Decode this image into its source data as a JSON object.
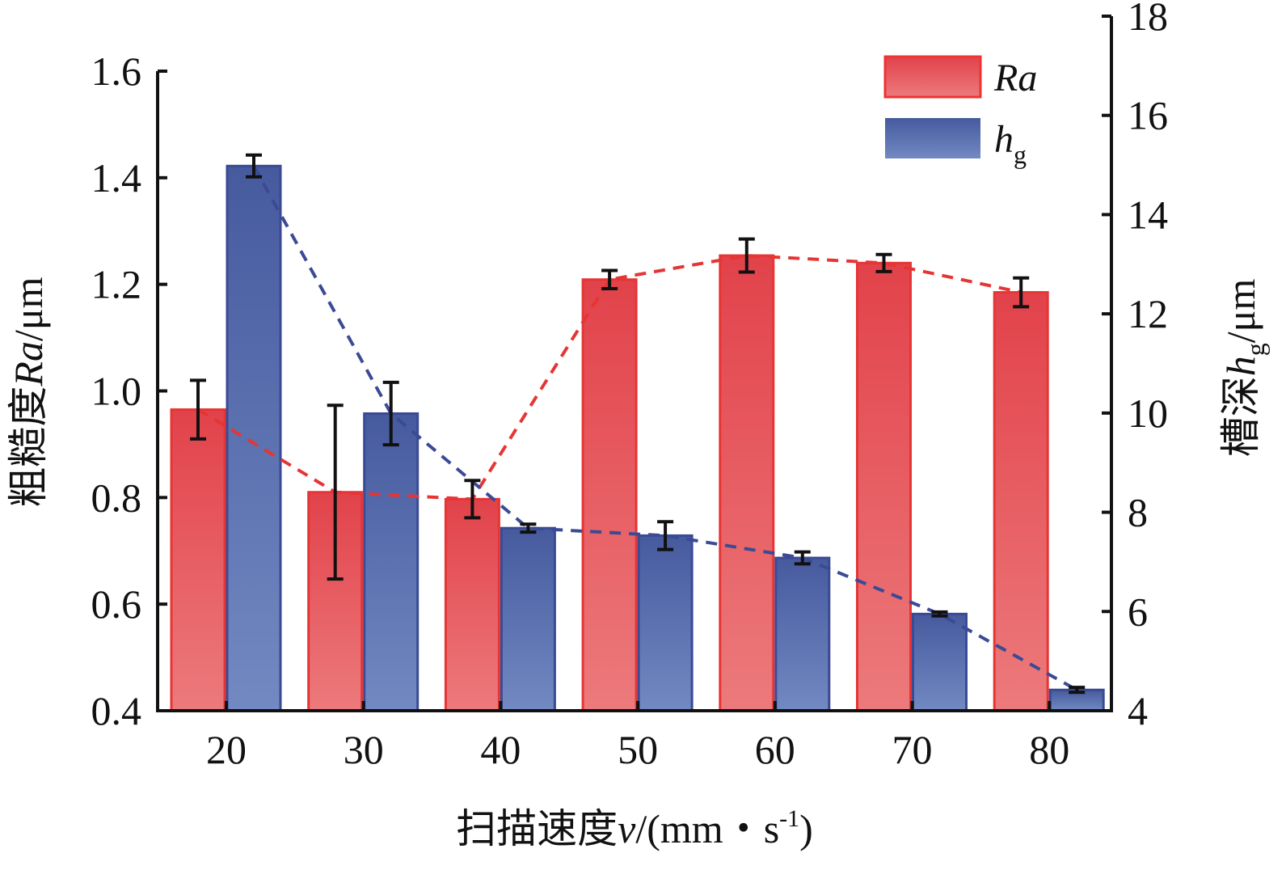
{
  "chart_data": {
    "type": "bar",
    "categories": [
      "20",
      "30",
      "40",
      "50",
      "60",
      "70",
      "80"
    ],
    "xlabel": "扫描速度v/(mm・s-1)",
    "xlabel_parts": {
      "cn": "扫描速度",
      "var": "v",
      "unit": "/(mm・s",
      "sup": "-1",
      "close": ")"
    },
    "ylabel_left": "粗糙度Ra/μm",
    "ylabel_left_parts": {
      "cn": "粗糙度",
      "var": "Ra",
      "unit": "/μm"
    },
    "ylabel_right": "槽深hg/μm",
    "ylabel_right_parts": {
      "cn": "槽深",
      "var": "h",
      "sub": "g",
      "unit": "/μm"
    },
    "ylim_left": [
      0.4,
      1.6
    ],
    "yticks_left": [
      "0.4",
      "0.6",
      "0.8",
      "1.0",
      "1.2",
      "1.4",
      "1.6"
    ],
    "ylim_right": [
      4,
      18
    ],
    "yticks_right": [
      "4",
      "6",
      "8",
      "10",
      "12",
      "14",
      "16",
      "18"
    ],
    "legend_position": "top-right",
    "series": [
      {
        "name": "Ra",
        "axis": "left",
        "color": "#e8474a",
        "values": [
          0.965,
          0.81,
          0.797,
          1.209,
          1.254,
          1.24,
          1.185
        ],
        "errors": [
          0.055,
          0.163,
          0.035,
          0.017,
          0.031,
          0.016,
          0.027
        ]
      },
      {
        "name": "hg",
        "axis": "right",
        "color": "#4d66a8",
        "values": [
          14.98,
          9.99,
          7.68,
          7.53,
          7.08,
          5.95,
          4.42
        ],
        "errors": [
          0.22,
          0.63,
          0.08,
          0.28,
          0.12,
          0.04,
          0.05
        ]
      }
    ],
    "legend": [
      {
        "label": "Ra"
      },
      {
        "label": "h",
        "sub": "g"
      }
    ]
  }
}
